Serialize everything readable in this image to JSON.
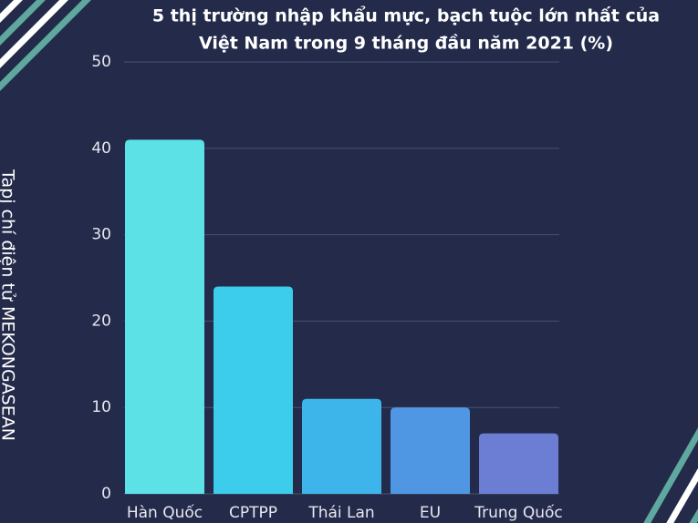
{
  "chart_data": {
    "type": "bar",
    "title": [
      "5 thị trường nhập khẩu mực, bạch tuộc lớn nhất của",
      "Việt Nam  trong 9 tháng đầu năm 2021 (%)"
    ],
    "side_label": "Tapj chí điện tử MEKONGASEAN",
    "categories": [
      "Hàn Quốc",
      "CPTPP",
      "Thái Lan",
      "EU",
      "Trung Quốc"
    ],
    "values": [
      41,
      24,
      11,
      10,
      7
    ],
    "colors": [
      "#5ce1e6",
      "#3ccdec",
      "#3db5ea",
      "#4f97e3",
      "#6c7dd4"
    ],
    "ylim": [
      0,
      50
    ],
    "yticks": [
      0,
      10,
      20,
      30,
      40,
      50
    ],
    "grid": true
  }
}
